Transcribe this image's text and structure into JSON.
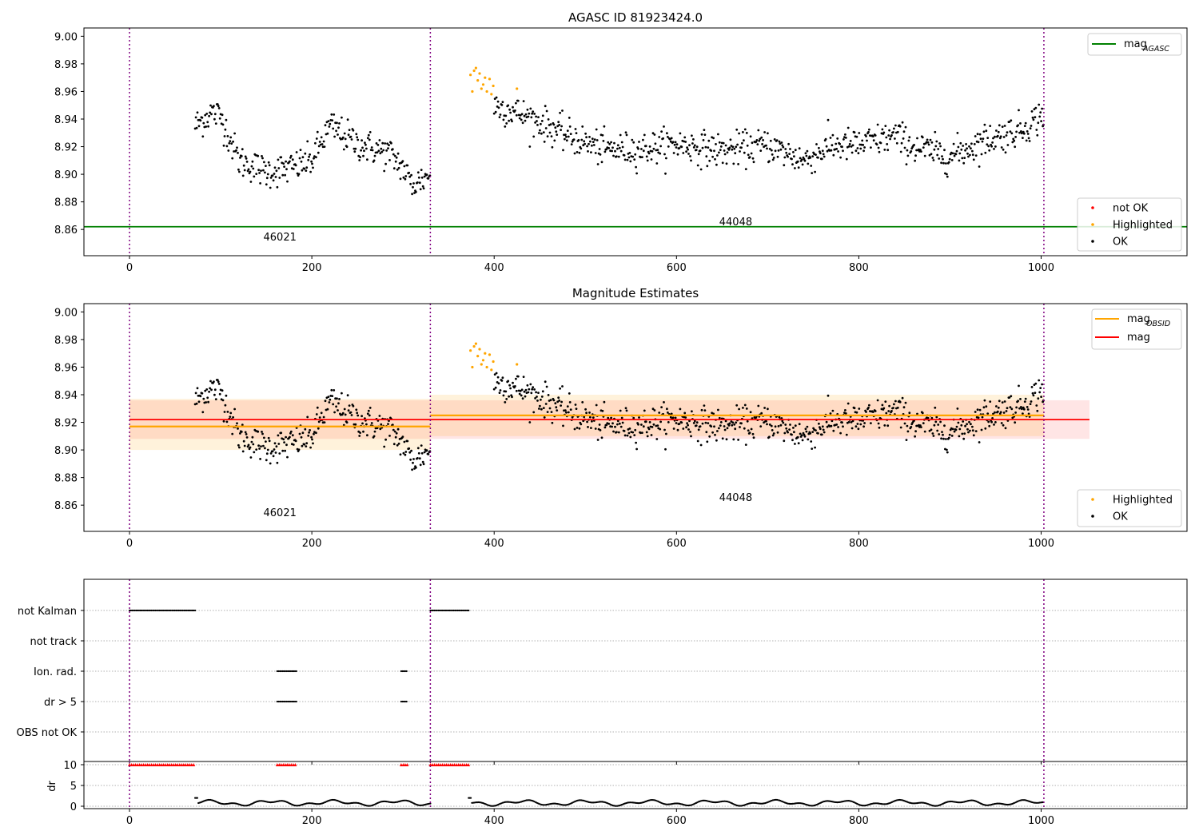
{
  "chart_data": [
    {
      "type": "scatter",
      "title": "AGASC ID 81923424.0",
      "xlim": [
        -50,
        1160
      ],
      "ylim": [
        8.841,
        9.006
      ],
      "xticks": [
        0,
        200,
        400,
        600,
        800,
        1000
      ],
      "yticks": [
        8.86,
        8.88,
        8.9,
        8.92,
        8.94,
        8.96,
        8.98,
        9.0
      ],
      "xtick_labels": [
        "0",
        "200",
        "400",
        "600",
        "800",
        "1000"
      ],
      "ytick_labels": [
        "8.86",
        "8.88",
        "8.90",
        "8.92",
        "8.94",
        "8.96",
        "8.98",
        "9.00"
      ],
      "mag_agasc": 8.862,
      "obsid_boundaries": [
        0,
        330,
        1003
      ],
      "obsid_labels": [
        {
          "text": "46021",
          "x": 165,
          "y": 8.855
        },
        {
          "text": "44048",
          "x": 665,
          "y": 8.866
        }
      ],
      "legend_top": {
        "location": "upper right",
        "entries": [
          {
            "label": "mag",
            "subscript": "AGASC",
            "color": "#008000"
          }
        ]
      },
      "legend_bottom": {
        "location": "lower right",
        "entries": [
          {
            "label": "not OK",
            "color": "#ff0000"
          },
          {
            "label": "Highlighted",
            "color": "#ffa500"
          },
          {
            "label": "OK",
            "color": "#000000"
          }
        ]
      },
      "highlighted_points": [
        [
          374,
          8.972
        ],
        [
          376,
          8.96
        ],
        [
          378,
          8.975
        ],
        [
          380,
          8.977
        ],
        [
          382,
          8.968
        ],
        [
          384,
          8.973
        ],
        [
          386,
          8.962
        ],
        [
          388,
          8.965
        ],
        [
          390,
          8.97
        ],
        [
          392,
          8.96
        ],
        [
          395,
          8.969
        ],
        [
          397,
          8.958
        ],
        [
          399,
          8.964
        ],
        [
          425,
          8.962
        ]
      ],
      "segments": [
        {
          "x_start": 72,
          "x_end": 330,
          "knots": [
            [
              72,
              8.935
            ],
            [
              90,
              8.945
            ],
            [
              100,
              8.942
            ],
            [
              120,
              8.91
            ],
            [
              150,
              8.902
            ],
            [
              175,
              8.904
            ],
            [
              200,
              8.91
            ],
            [
              220,
              8.935
            ],
            [
              250,
              8.922
            ],
            [
              270,
              8.918
            ],
            [
              285,
              8.915
            ],
            [
              300,
              8.905
            ],
            [
              310,
              8.892
            ],
            [
              330,
              8.9
            ]
          ],
          "noise": 0.008
        },
        {
          "x_start": 400,
          "x_end": 1003,
          "knots": [
            [
              400,
              8.95
            ],
            [
              420,
              8.946
            ],
            [
              450,
              8.938
            ],
            [
              480,
              8.928
            ],
            [
              520,
              8.918
            ],
            [
              560,
              8.918
            ],
            [
              600,
              8.922
            ],
            [
              650,
              8.917
            ],
            [
              700,
              8.921
            ],
            [
              740,
              8.91
            ],
            [
              770,
              8.921
            ],
            [
              800,
              8.921
            ],
            [
              840,
              8.928
            ],
            [
              860,
              8.92
            ],
            [
              900,
              8.913
            ],
            [
              940,
              8.925
            ],
            [
              980,
              8.933
            ],
            [
              1003,
              8.944
            ]
          ],
          "noise": 0.008
        }
      ]
    },
    {
      "type": "scatter",
      "title": "Magnitude Estimates",
      "xlim": [
        -50,
        1160
      ],
      "ylim": [
        8.841,
        9.006
      ],
      "xticks": [
        0,
        200,
        400,
        600,
        800,
        1000
      ],
      "yticks": [
        8.86,
        8.88,
        8.9,
        8.92,
        8.94,
        8.96,
        8.98,
        9.0
      ],
      "xtick_labels": [
        "0",
        "200",
        "400",
        "600",
        "800",
        "1000"
      ],
      "ytick_labels": [
        "8.86",
        "8.88",
        "8.90",
        "8.92",
        "8.94",
        "8.96",
        "8.98",
        "9.00"
      ],
      "mag": {
        "value": 8.922,
        "band": [
          8.908,
          8.936
        ],
        "x_range": [
          0,
          1053
        ]
      },
      "mag_obsid": [
        {
          "x_range": [
            0,
            330
          ],
          "value": 8.917,
          "band": [
            8.9,
            8.937
          ]
        },
        {
          "x_range": [
            330,
            1003
          ],
          "value": 8.925,
          "band": [
            8.91,
            8.94
          ]
        }
      ],
      "obsid_boundaries": [
        0,
        330,
        1003
      ],
      "obsid_labels": [
        {
          "text": "46021",
          "x": 165,
          "y": 8.855
        },
        {
          "text": "44048",
          "x": 665,
          "y": 8.866
        }
      ],
      "legend_top": {
        "location": "upper right",
        "entries": [
          {
            "label": "mag",
            "subscript": "OBSID",
            "color": "#ffa500"
          },
          {
            "label": "mag",
            "subscript": "",
            "color": "#ff0000"
          }
        ]
      },
      "legend_bottom": {
        "location": "lower right",
        "entries": [
          {
            "label": "Highlighted",
            "color": "#ffa500"
          },
          {
            "label": "OK",
            "color": "#000000"
          }
        ]
      }
    },
    {
      "type": "scatter",
      "xlim": [
        -50,
        1160
      ],
      "xticks": [
        0,
        200,
        400,
        600,
        800,
        1000
      ],
      "xtick_labels": [
        "0",
        "200",
        "400",
        "600",
        "800",
        "1000"
      ],
      "flag_rows": [
        "not Kalman",
        "not track",
        "Ion. rad.",
        "dr > 5",
        "OBS not OK"
      ],
      "flag_ranges": {
        "not Kalman": [
          [
            0,
            72
          ],
          [
            330,
            372
          ]
        ],
        "not track": [],
        "Ion. rad.": [
          [
            162,
            183
          ],
          [
            298,
            305
          ]
        ],
        "dr > 5": [
          [
            162,
            183
          ],
          [
            298,
            305
          ]
        ],
        "OBS not OK": []
      },
      "dr": {
        "ylabel": "dr",
        "ylim": [
          0,
          10
        ],
        "yticks": [
          0,
          5,
          10
        ],
        "ytick_labels": [
          "0",
          "5",
          "10"
        ],
        "clipped_ranges": [
          [
            0,
            72
          ],
          [
            162,
            183
          ],
          [
            298,
            305
          ],
          [
            330,
            372
          ]
        ],
        "clipped_value": 10,
        "series_ranges": [
          [
            72,
            330
          ],
          [
            372,
            1003
          ]
        ],
        "typical": 0.8
      },
      "obsid_boundaries": [
        0,
        330,
        1003
      ]
    }
  ]
}
